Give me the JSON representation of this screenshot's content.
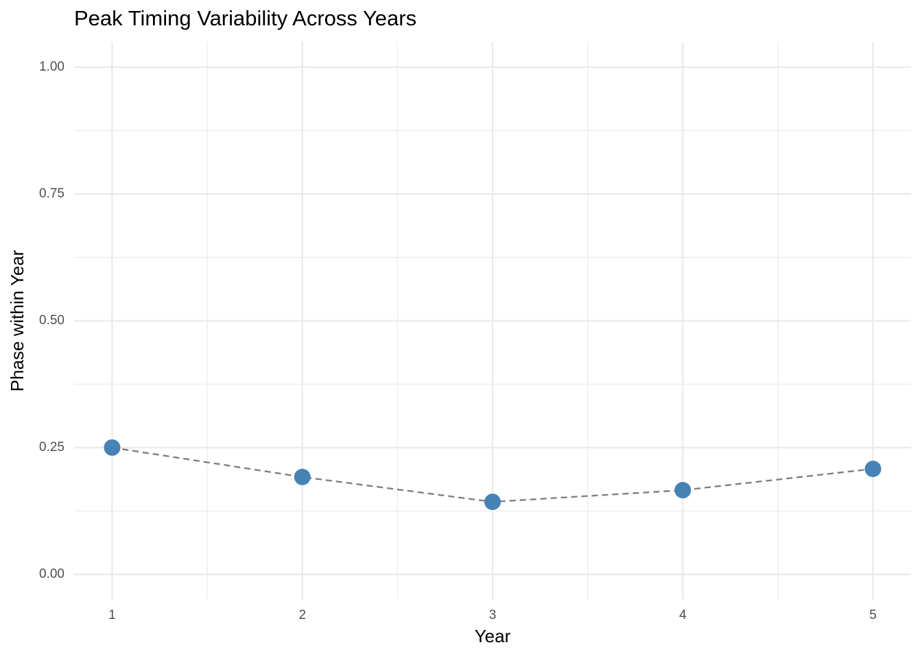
{
  "chart_data": {
    "type": "line",
    "title": "Peak Timing Variability Across Years",
    "x_label": "Year",
    "y_label": "Phase within Year",
    "x": [
      1,
      2,
      3,
      4,
      5
    ],
    "series": [
      {
        "values": [
          0.25,
          0.192,
          0.143,
          0.166,
          0.208
        ],
        "color": "#4682b4",
        "line_color": "#7f7f7f",
        "line_style": "dashed"
      }
    ],
    "xlim": [
      0.8,
      5.2
    ],
    "xticks": [
      1,
      2,
      3,
      4,
      5
    ],
    "ylim": [
      -0.05,
      1.05
    ],
    "yticks": [
      {
        "value": 0,
        "label": "0.00"
      },
      {
        "value": 0.25,
        "label": "0.25"
      },
      {
        "value": 0.5,
        "label": "0.50"
      },
      {
        "value": 0.75,
        "label": "0.75"
      },
      {
        "value": 1,
        "label": "1.00"
      }
    ],
    "grid": true,
    "minor_grid": true
  }
}
